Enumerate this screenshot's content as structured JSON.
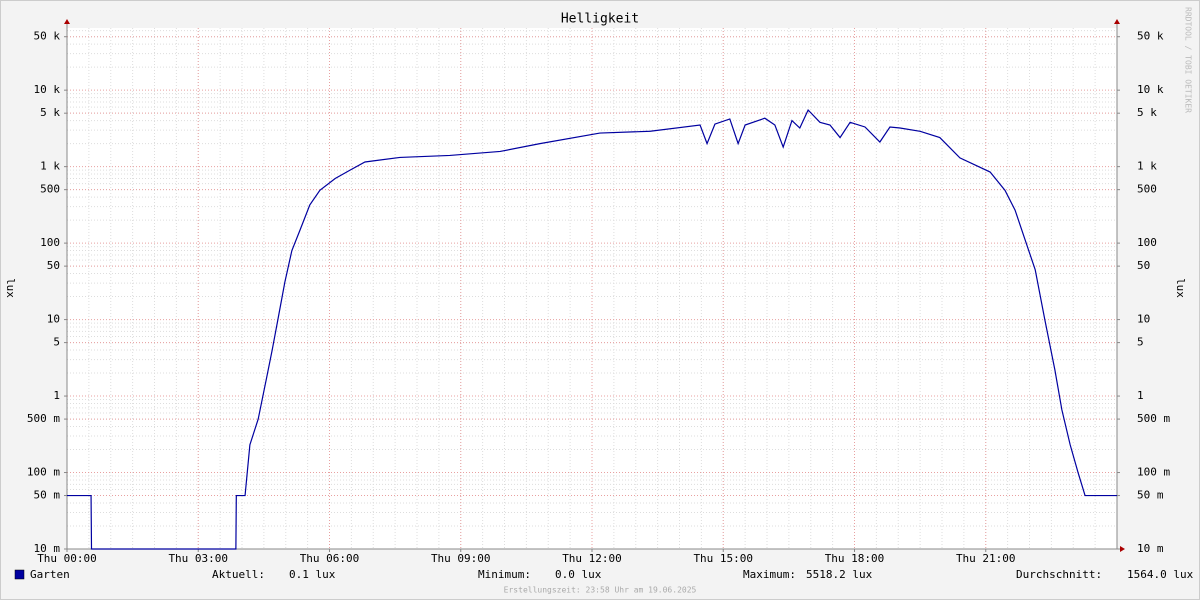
{
  "chart_data": {
    "type": "line",
    "title": "Helligkeit",
    "y_label": "lux",
    "watermark": "RRDTOOL / TOBI OETIKER",
    "footer": "Erstellungszeit: 23:58 Uhr am 19.06.2025",
    "yscale": "log",
    "grid": true,
    "xlim": [
      0,
      24
    ],
    "xticks": [
      {
        "value": 0,
        "label": "Thu 00:00"
      },
      {
        "value": 3,
        "label": "Thu 03:00"
      },
      {
        "value": 6,
        "label": "Thu 06:00"
      },
      {
        "value": 9,
        "label": "Thu 09:00"
      },
      {
        "value": 12,
        "label": "Thu 12:00"
      },
      {
        "value": 15,
        "label": "Thu 15:00"
      },
      {
        "value": 18,
        "label": "Thu 18:00"
      },
      {
        "value": 21,
        "label": "Thu 21:00"
      }
    ],
    "ylim": [
      0.01,
      65000
    ],
    "yticks": [
      {
        "value": 0.01,
        "label": "10 m"
      },
      {
        "value": 0.05,
        "label": "50 m"
      },
      {
        "value": 0.1,
        "label": "100 m"
      },
      {
        "value": 0.5,
        "label": "500 m"
      },
      1,
      5,
      10,
      50,
      100,
      500,
      {
        "value": 1000,
        "label": "1 k"
      },
      {
        "value": 5000,
        "label": "5 k"
      },
      {
        "value": 10000,
        "label": "10 k"
      },
      {
        "value": 50000,
        "label": "50 k"
      }
    ],
    "x": [
      0,
      0.55,
      0.56,
      3.86,
      3.87,
      4.07,
      4.18,
      4.37,
      4.55,
      4.69,
      4.82,
      4.98,
      5.14,
      5.33,
      5.55,
      5.78,
      6.13,
      6.47,
      6.81,
      7.61,
      8.75,
      9.9,
      10.81,
      12.18,
      13.33,
      14.47,
      14.63,
      14.81,
      15.15,
      15.34,
      15.5,
      15.95,
      16.18,
      16.37,
      16.57,
      16.75,
      16.94,
      17.21,
      17.44,
      17.67,
      17.9,
      18.24,
      18.58,
      18.81,
      19.04,
      19.5,
      19.95,
      20.41,
      21.1,
      21.44,
      21.67,
      21.9,
      22.13,
      22.35,
      22.58,
      22.74,
      22.93,
      23.11,
      23.27,
      24
    ],
    "series": [
      {
        "name": "Garten",
        "color": "#0000a0",
        "values": [
          0.05,
          0.05,
          0.01,
          0.01,
          0.05,
          0.05,
          0.23,
          0.5,
          1.6,
          4,
          10,
          31,
          80,
          150,
          316,
          490,
          700,
          900,
          1150,
          1320,
          1400,
          1580,
          2000,
          2750,
          2900,
          3500,
          2000,
          3600,
          4200,
          2000,
          3500,
          4300,
          3500,
          1800,
          4000,
          3200,
          5500,
          3800,
          3500,
          2400,
          3800,
          3300,
          2100,
          3300,
          3200,
          2900,
          2400,
          1300,
          850,
          490,
          270,
          110,
          45,
          10,
          2.2,
          0.66,
          0.23,
          0.1,
          0.05,
          0.05
        ]
      }
    ],
    "stats": [
      {
        "label": "Aktuell:",
        "value": "0.1 lux"
      },
      {
        "label": "Minimum:",
        "value": "0.0 lux"
      },
      {
        "label": "Maximum:",
        "value": "5518.2 lux"
      },
      {
        "label": "Durchschnitt:",
        "value": "1564.0 lux"
      }
    ]
  }
}
